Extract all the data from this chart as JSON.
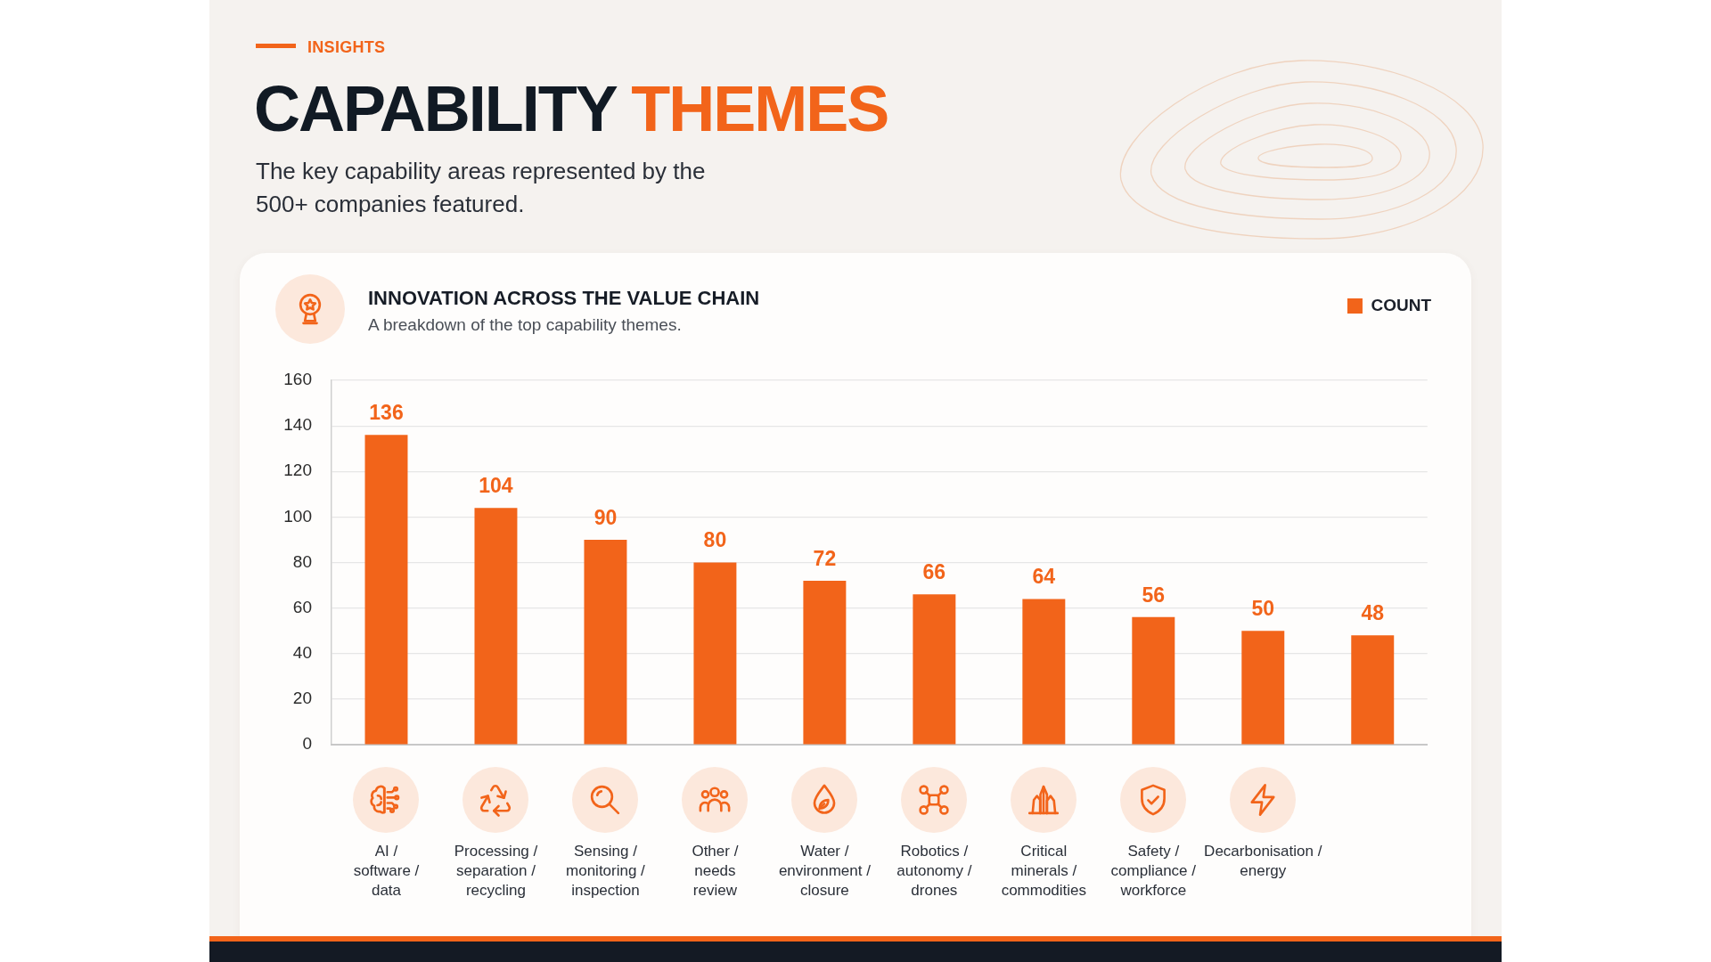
{
  "chart_data": {
    "type": "bar",
    "title": "INNOVATION ACROSS THE VALUE CHAIN",
    "subtitle": "A breakdown of the top capability themes.",
    "annotations": [
      "INSIGHTS",
      "CAPABILITY THEMES",
      "The key capability areas represented by the 500+ companies featured."
    ],
    "categories": [
      "AI / software / data",
      "Processing / separation / recycling",
      "Sensing / monitoring / inspection",
      "Other / needs review",
      "Water / environment / closure",
      "Robotics / autonomy / drones",
      "Critical minerals / commodities",
      "Safety / compliance / workforce",
      "Decarbonisation / energy",
      null
    ],
    "series": [
      {
        "name": "COUNT",
        "color": "#f2641a",
        "values": [
          136,
          104,
          90,
          80,
          72,
          66,
          64,
          56,
          50,
          48
        ]
      }
    ],
    "ylim": [
      0,
      160
    ],
    "yticks": [
      0,
      20,
      40,
      60,
      80,
      100,
      120,
      140,
      160
    ],
    "grid": "y",
    "legend": "top right",
    "data_labels": true
  }
}
